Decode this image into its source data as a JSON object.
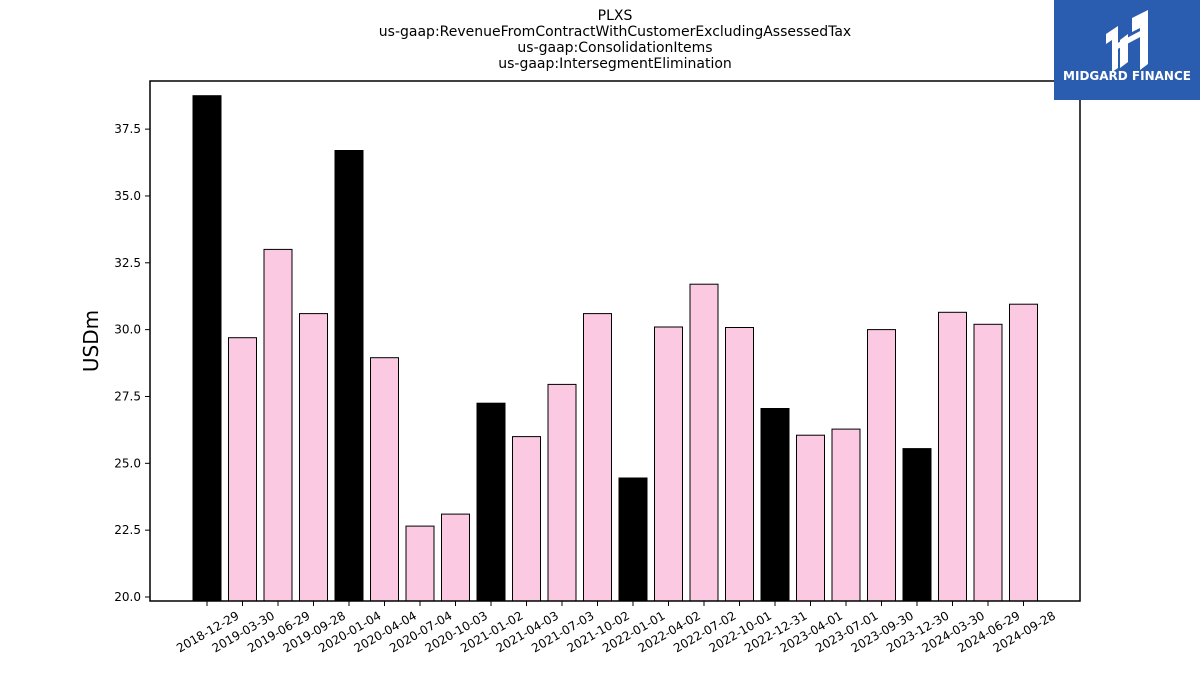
{
  "chart_data": {
    "type": "bar",
    "title_lines": [
      "PLXS",
      "us-gaap:RevenueFromContractWithCustomerExcludingAssessedTax",
      "us-gaap:ConsolidationItems",
      "us-gaap:IntersegmentElimination"
    ],
    "ylabel": "USDm",
    "xlabel": "",
    "ylim": [
      19.85,
      39.3
    ],
    "yticks": [
      20.0,
      22.5,
      25.0,
      27.5,
      30.0,
      32.5,
      35.0,
      37.5
    ],
    "categories": [
      "2018-12-29",
      "2019-03-30",
      "2019-06-29",
      "2019-09-28",
      "2020-01-04",
      "2020-04-04",
      "2020-07-04",
      "2020-10-03",
      "2021-01-02",
      "2021-04-03",
      "2021-07-03",
      "2021-10-02",
      "2022-01-01",
      "2022-04-02",
      "2022-07-02",
      "2022-10-01",
      "2022-12-31",
      "2023-04-01",
      "2023-07-01",
      "2023-09-30",
      "2023-12-30",
      "2024-03-30",
      "2024-06-29",
      "2024-09-28"
    ],
    "values": [
      38.75,
      29.7,
      33.0,
      30.6,
      36.7,
      28.95,
      22.65,
      23.1,
      27.25,
      26.0,
      27.95,
      30.6,
      24.45,
      30.1,
      31.7,
      30.08,
      27.05,
      26.05,
      26.28,
      30.0,
      25.55,
      30.65,
      30.2,
      30.95
    ],
    "bar_colors": [
      "#000000",
      "#fbc9e1",
      "#fbc9e1",
      "#fbc9e1",
      "#000000",
      "#fbc9e1",
      "#fbc9e1",
      "#fbc9e1",
      "#000000",
      "#fbc9e1",
      "#fbc9e1",
      "#fbc9e1",
      "#000000",
      "#fbc9e1",
      "#fbc9e1",
      "#fbc9e1",
      "#000000",
      "#fbc9e1",
      "#fbc9e1",
      "#fbc9e1",
      "#000000",
      "#fbc9e1",
      "#fbc9e1",
      "#fbc9e1"
    ],
    "grid": false,
    "legend": "none"
  },
  "logo": {
    "text": "MIDGARD FINANCE",
    "background": "#2a5db0"
  }
}
